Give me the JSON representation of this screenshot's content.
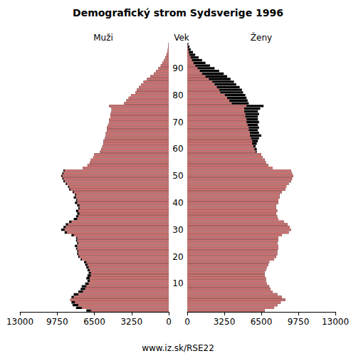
{
  "chart_data": {
    "type": "bar",
    "orientation": "horizontal",
    "title": "Demografický strom Sydsverige 1996",
    "y_label": "Vek",
    "annotations": [
      "www.iz.sk/RSE22"
    ],
    "categories": [
      null,
      null,
      null,
      null,
      null,
      null,
      null,
      null,
      null,
      null,
      10,
      null,
      null,
      null,
      null,
      null,
      null,
      null,
      null,
      null,
      20,
      null,
      null,
      null,
      null,
      null,
      null,
      null,
      null,
      null,
      30,
      null,
      null,
      null,
      null,
      null,
      null,
      null,
      null,
      null,
      40,
      null,
      null,
      null,
      null,
      null,
      null,
      null,
      null,
      null,
      50,
      null,
      null,
      null,
      null,
      null,
      null,
      null,
      null,
      null,
      60,
      null,
      null,
      null,
      null,
      null,
      null,
      null,
      null,
      null,
      70,
      null,
      null,
      null,
      null,
      null,
      null,
      null,
      null,
      null,
      80,
      null,
      null,
      null,
      null,
      null,
      null,
      null,
      null,
      null,
      90,
      null,
      null,
      null,
      null,
      null,
      null,
      null,
      null,
      null
    ],
    "series": [
      {
        "name": "Muži",
        "color": "#c87070",
        "values": [
          7200,
          8100,
          8400,
          8500,
          8600,
          8500,
          8300,
          7900,
          7700,
          7600,
          7300,
          7100,
          7200,
          7100,
          7000,
          7100,
          7200,
          7300,
          7400,
          7700,
          7900,
          8000,
          8000,
          8100,
          8200,
          8000,
          8100,
          8100,
          8500,
          9100,
          9400,
          9200,
          9000,
          8700,
          8300,
          8100,
          8000,
          8100,
          7900,
          8000,
          8200,
          8100,
          8300,
          8200,
          8400,
          8700,
          8800,
          9000,
          9200,
          9300,
          9400,
          9300,
          9200,
          7500,
          7100,
          6900,
          6800,
          6600,
          6500,
          6000,
          5900,
          5800,
          5700,
          5700,
          5600,
          5500,
          5500,
          5400,
          5400,
          5300,
          5200,
          5200,
          5100,
          5100,
          5000,
          5000,
          5200,
          3900,
          3700,
          3500,
          3300,
          2900,
          2800,
          2600,
          2400,
          2200,
          1900,
          1600,
          1300,
          1100,
          900,
          700,
          550,
          420,
          300,
          200,
          130,
          80,
          50,
          30
        ]
      },
      {
        "name": "Ženy",
        "color": "#c87070",
        "values": [
          6800,
          7600,
          7900,
          8200,
          8600,
          8300,
          7900,
          7500,
          7300,
          7200,
          7000,
          6900,
          6900,
          6800,
          6800,
          6900,
          7000,
          7100,
          7200,
          7600,
          7800,
          7900,
          7900,
          8000,
          8000,
          7900,
          8000,
          8000,
          8300,
          8900,
          9100,
          9000,
          8800,
          8500,
          8000,
          7900,
          7800,
          7900,
          7800,
          7800,
          8000,
          8000,
          8100,
          8100,
          8300,
          8600,
          8700,
          8900,
          9100,
          9200,
          9300,
          9200,
          9100,
          7500,
          7100,
          6900,
          6800,
          6600,
          6500,
          6100,
          6100,
          6000,
          6100,
          6200,
          6300,
          6500,
          6300,
          6200,
          6300,
          6200,
          6300,
          6200,
          6200,
          6300,
          6200,
          6400,
          6700,
          5400,
          5300,
          5200,
          5100,
          4900,
          4800,
          4600,
          4300,
          4100,
          3800,
          3500,
          3200,
          2800,
          2400,
          2000,
          1600,
          1300,
          1000,
          700,
          500,
          300,
          200,
          100
        ]
      }
    ],
    "xlim": [
      0,
      13000
    ],
    "xticks": [
      0,
      3250,
      6500,
      9750,
      13000
    ],
    "grid": false
  }
}
